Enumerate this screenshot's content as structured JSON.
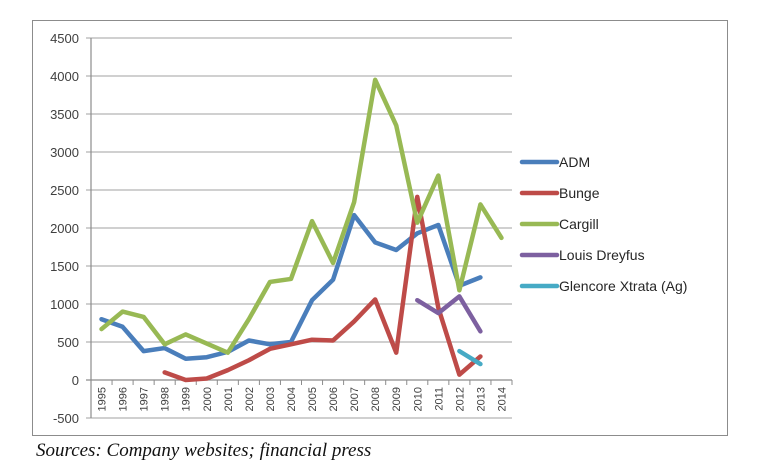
{
  "source_note": "Sources: Company websites; financial press",
  "chart_data": {
    "type": "line",
    "title": "",
    "xlabel": "",
    "ylabel": "",
    "ylim": [
      -500,
      4500
    ],
    "ytick_step": 500,
    "yticks": [
      "-500",
      "0",
      "500",
      "1000",
      "1500",
      "2000",
      "2500",
      "3000",
      "3500",
      "4000",
      "4500"
    ],
    "grid": true,
    "legend_position": "right",
    "categories": [
      "1995",
      "1996",
      "1997",
      "1998",
      "1999",
      "2000",
      "2001",
      "2002",
      "2003",
      "2004",
      "2005",
      "2006",
      "2007",
      "2008",
      "2009",
      "2010",
      "2011",
      "2012",
      "2013",
      "2014"
    ],
    "series": [
      {
        "name": "ADM",
        "color": "#4a7ebb",
        "values": [
          800,
          700,
          380,
          420,
          280,
          300,
          370,
          520,
          470,
          500,
          1050,
          1320,
          2170,
          1810,
          1710,
          1930,
          2040,
          1240,
          1350,
          null
        ]
      },
      {
        "name": "Bunge",
        "color": "#be4b48",
        "values": [
          null,
          null,
          null,
          100,
          0,
          20,
          130,
          260,
          410,
          470,
          530,
          520,
          770,
          1060,
          360,
          2410,
          950,
          70,
          310,
          null
        ]
      },
      {
        "name": "Cargill",
        "color": "#98b954",
        "values": [
          670,
          900,
          830,
          470,
          600,
          480,
          360,
          800,
          1290,
          1330,
          2090,
          1540,
          2340,
          3950,
          3350,
          2070,
          2690,
          1180,
          2310,
          1870
        ]
      },
      {
        "name": "Louis Dreyfus",
        "color": "#7d60a0",
        "values": [
          null,
          null,
          null,
          null,
          null,
          null,
          null,
          null,
          null,
          null,
          null,
          null,
          null,
          null,
          null,
          1050,
          880,
          1100,
          640,
          null
        ]
      },
      {
        "name": "Glencore Xtrata (Ag)",
        "color": "#46aac5",
        "values": [
          null,
          null,
          null,
          null,
          null,
          null,
          null,
          null,
          null,
          null,
          null,
          null,
          null,
          null,
          null,
          null,
          null,
          380,
          210,
          null
        ]
      }
    ]
  }
}
